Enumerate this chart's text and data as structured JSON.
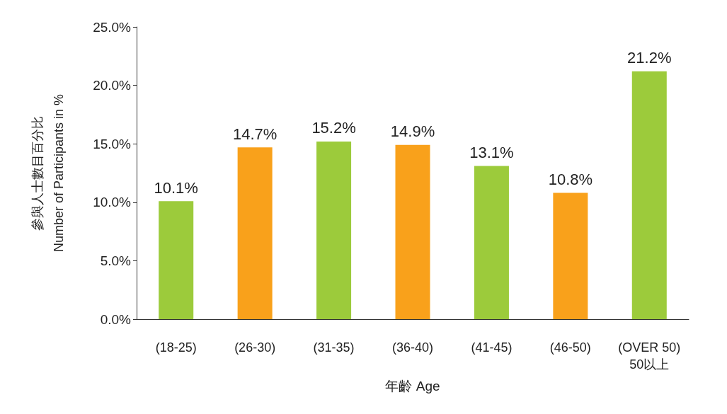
{
  "chart_data": {
    "type": "bar",
    "xlabel": "年齡 Age",
    "ylabel": "參與人士數目百分比\nNumber of Participants in %",
    "categories": [
      "(18-25)",
      "(26-30)",
      "(31-35)",
      "(36-40)",
      "(41-45)",
      "(46-50)",
      "(OVER 50)\n50以上"
    ],
    "values": [
      10.1,
      14.7,
      15.2,
      14.9,
      13.1,
      10.8,
      21.2
    ],
    "colors": [
      "#9ccb3b",
      "#f9a11b",
      "#9ccb3b",
      "#f9a11b",
      "#9ccb3b",
      "#f9a11b",
      "#9ccb3b"
    ],
    "value_labels": [
      "10.1%",
      "14.7%",
      "15.2%",
      "14.9%",
      "13.1%",
      "10.8%",
      "21.2%"
    ],
    "ylim": [
      0,
      25
    ],
    "yticks": [
      {
        "value": 0,
        "label": "0.0%"
      },
      {
        "value": 5,
        "label": "5.0%"
      },
      {
        "value": 10,
        "label": "10.0%"
      },
      {
        "value": 15,
        "label": "15.0%"
      },
      {
        "value": 20,
        "label": "20.0%"
      },
      {
        "value": 25,
        "label": "25.0%"
      }
    ],
    "grid": false
  }
}
